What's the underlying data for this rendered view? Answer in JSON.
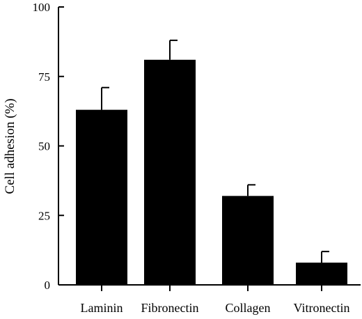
{
  "chart_data": {
    "type": "bar",
    "categories": [
      "Laminin",
      "Fibronectin",
      "Collagen",
      "Vitronectin"
    ],
    "values": [
      63,
      81,
      32,
      8
    ],
    "errors": [
      8,
      7,
      4,
      4
    ],
    "ylabel": "Cell adhesion (%)",
    "ylim": [
      0,
      100
    ],
    "yticks": [
      "0",
      "25",
      "50",
      "75",
      "100"
    ],
    "grid": false,
    "bar_color": "#000000"
  }
}
